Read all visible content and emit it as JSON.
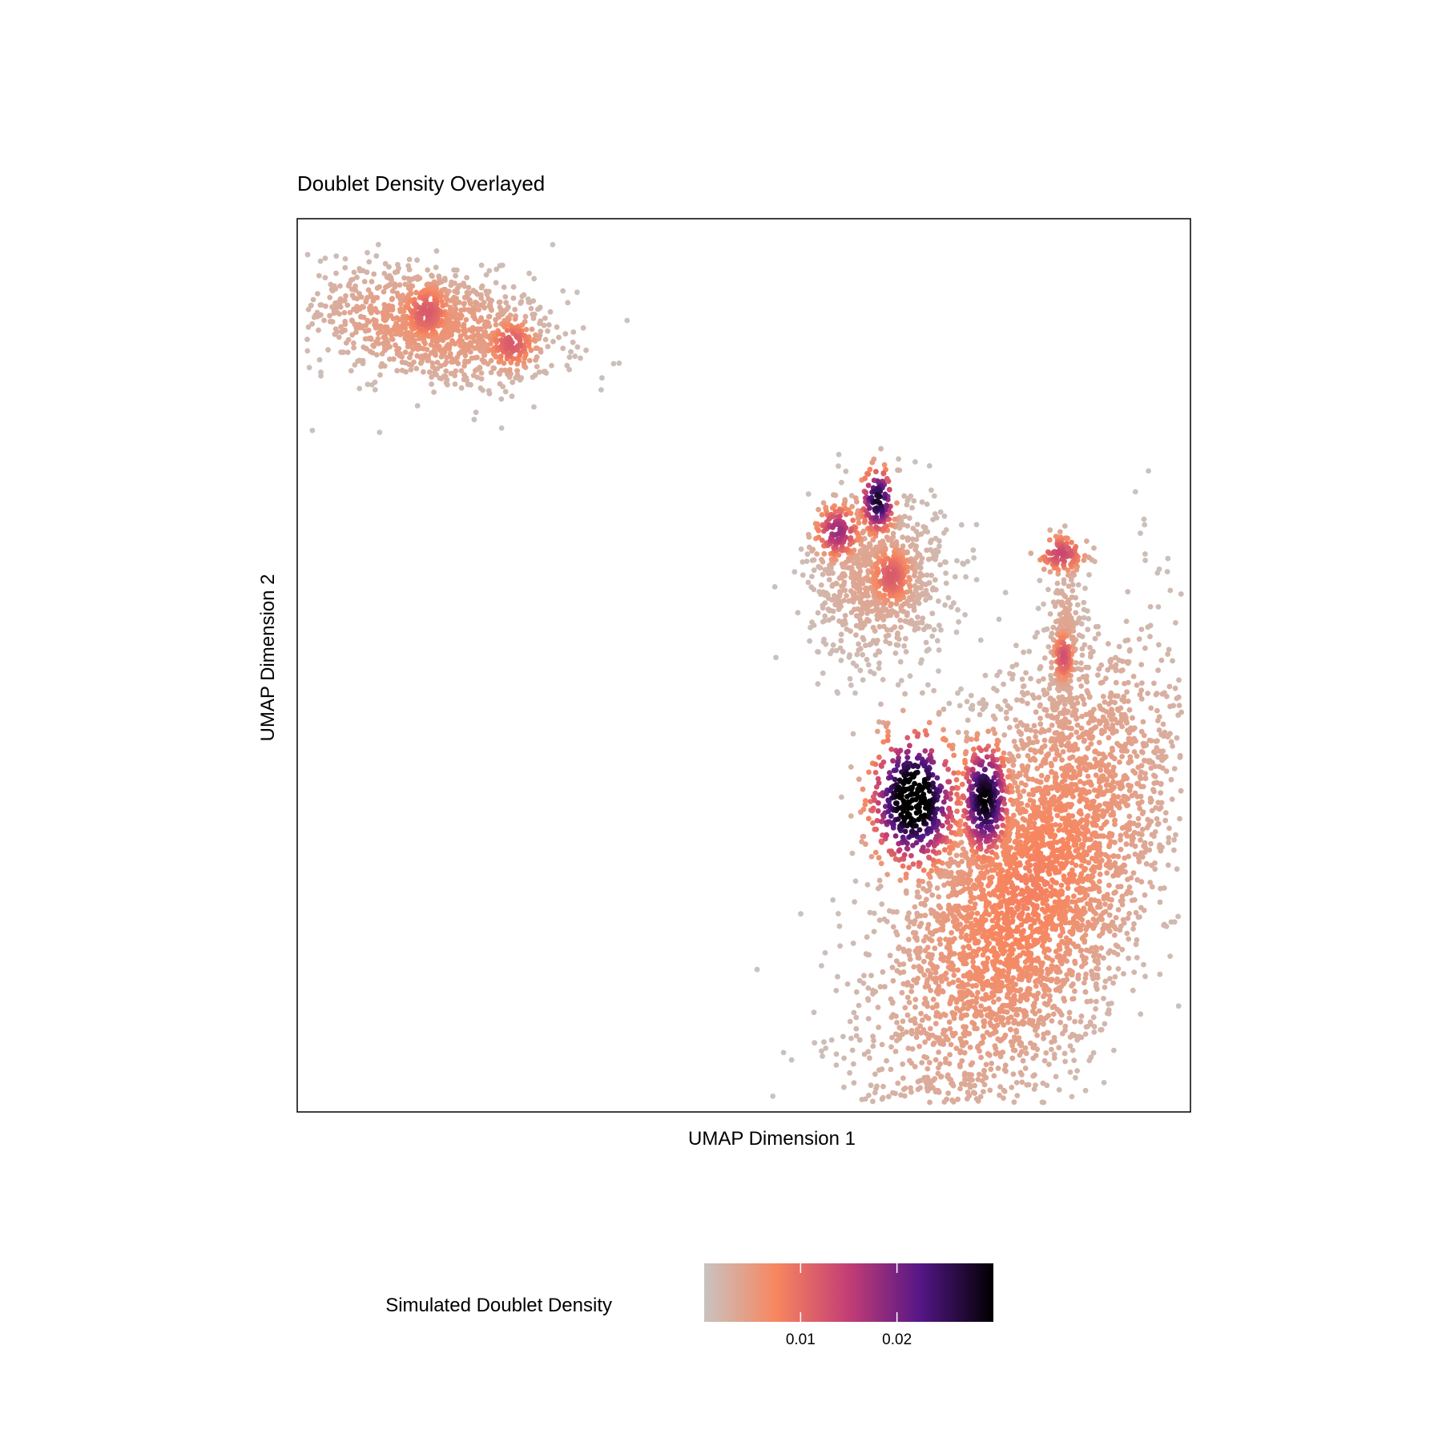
{
  "chart_data": {
    "type": "scatter",
    "title": "Doublet Density Overlayed",
    "xlabel": "UMAP Dimension 1",
    "ylabel": "UMAP Dimension 2",
    "xlim": [
      0,
      1
    ],
    "ylim": [
      0,
      1
    ],
    "grid": false,
    "color_scale": {
      "title": "Simulated Doublet Density",
      "ticks": [
        0.01,
        0.02
      ],
      "tick_labels": [
        "0.01",
        "0.02"
      ],
      "range": [
        0,
        0.03
      ],
      "colors": [
        "#c8c3c0",
        "#f7865f",
        "#c33d74",
        "#541686",
        "#000000"
      ]
    },
    "clusters": [
      {
        "label": "top-left",
        "cx": 0.15,
        "cy": 0.88,
        "rx": 0.13,
        "ry": 0.06,
        "angle": -10,
        "density": 0.006
      },
      {
        "label": "top-left-core-1",
        "cx": 0.145,
        "cy": 0.895,
        "rx": 0.03,
        "ry": 0.035,
        "angle": 0,
        "density": 0.012
      },
      {
        "label": "top-left-core-2",
        "cx": 0.24,
        "cy": 0.86,
        "rx": 0.03,
        "ry": 0.03,
        "angle": 0,
        "density": 0.012
      },
      {
        "label": "upper-middle",
        "cx": 0.65,
        "cy": 0.6,
        "rx": 0.07,
        "ry": 0.09,
        "angle": 0,
        "density": 0.004
      },
      {
        "label": "upper-middle-core-1",
        "cx": 0.65,
        "cy": 0.685,
        "rx": 0.018,
        "ry": 0.035,
        "angle": 0,
        "density": 0.028
      },
      {
        "label": "upper-middle-core-2",
        "cx": 0.605,
        "cy": 0.65,
        "rx": 0.025,
        "ry": 0.03,
        "angle": 0,
        "density": 0.018
      },
      {
        "label": "upper-middle-core-3",
        "cx": 0.665,
        "cy": 0.6,
        "rx": 0.025,
        "ry": 0.035,
        "angle": 0,
        "density": 0.012
      },
      {
        "label": "right-branch",
        "cx": 0.86,
        "cy": 0.52,
        "rx": 0.02,
        "ry": 0.1,
        "angle": 0,
        "density": 0.004
      },
      {
        "label": "right-branch-core-1",
        "cx": 0.855,
        "cy": 0.625,
        "rx": 0.028,
        "ry": 0.022,
        "angle": 0,
        "density": 0.014
      },
      {
        "label": "right-branch-core-2",
        "cx": 0.858,
        "cy": 0.51,
        "rx": 0.012,
        "ry": 0.03,
        "angle": 0,
        "density": 0.013
      },
      {
        "label": "lower-right",
        "cx": 0.82,
        "cy": 0.25,
        "rx": 0.12,
        "ry": 0.26,
        "angle": -25,
        "density": 0.008
      },
      {
        "label": "lower-right-core-1",
        "cx": 0.69,
        "cy": 0.35,
        "rx": 0.045,
        "ry": 0.07,
        "angle": 0,
        "density": 0.035
      },
      {
        "label": "lower-right-core-2",
        "cx": 0.77,
        "cy": 0.35,
        "rx": 0.025,
        "ry": 0.06,
        "angle": 0,
        "density": 0.03
      }
    ]
  }
}
